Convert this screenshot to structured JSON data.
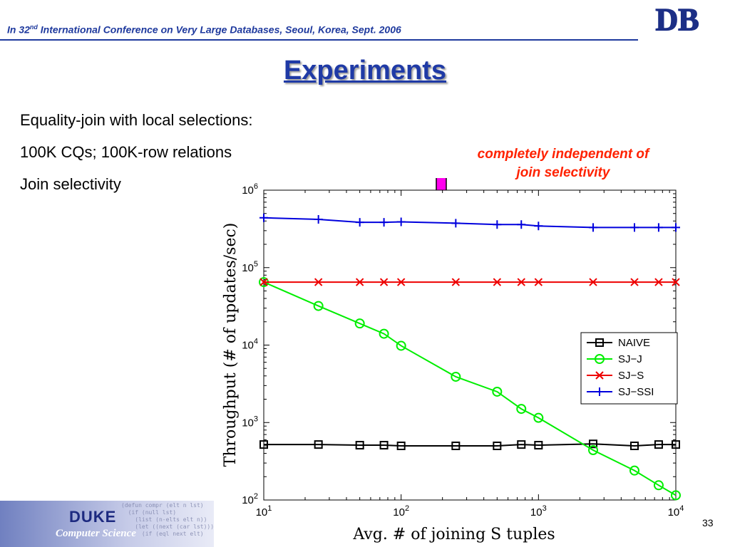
{
  "header": {
    "prefix": "In 32",
    "sup": "nd",
    "rest": " International Conference on Very Large Databases, Seoul, Korea, Sept. 2006",
    "logo_text": "DB"
  },
  "title": "Experiments",
  "bullets": [
    "Equality-join with local selections:",
    "100K CQs; 100K-row relations",
    "Join selectivity"
  ],
  "annotation": {
    "line1": "completely independent of",
    "line2": "join selectivity",
    "color": "#ff2200",
    "arrow_color": "#ff00ee"
  },
  "footer": {
    "duke": "DUKE",
    "cs": "Computer Science",
    "code_lines": [
      "(defun compr (elt n lst)",
      "  (if (null lst)",
      "    (list (n-elts elt n))",
      "    (let ((next (car lst)))",
      "      (if (eql next elt)"
    ]
  },
  "page_number": "33",
  "chart_data": {
    "type": "line",
    "xscale": "log",
    "yscale": "log",
    "xlim": [
      10,
      10000
    ],
    "ylim": [
      100,
      1000000
    ],
    "xlabel": "Avg. # of joining S tuples",
    "ylabel": "Throughput (# of updates/sec)",
    "xticks": [
      10,
      100,
      1000,
      10000
    ],
    "yticks": [
      100,
      1000,
      10000,
      100000,
      1000000
    ],
    "tick_base": "10",
    "xtick_exponents": [
      "1",
      "2",
      "3",
      "4"
    ],
    "ytick_exponents": [
      "2",
      "3",
      "4",
      "5",
      "6"
    ],
    "legend_position": "right",
    "grid": false,
    "x": [
      10,
      25,
      50,
      75,
      100,
      250,
      500,
      750,
      1000,
      2500,
      5000,
      7500,
      10000
    ],
    "series": [
      {
        "name": "NAIVE",
        "color": "#000000",
        "marker": "square",
        "values": [
          520,
          520,
          510,
          510,
          500,
          500,
          500,
          520,
          510,
          530,
          500,
          520,
          520
        ]
      },
      {
        "name": "SJ−J",
        "color": "#00ee00",
        "marker": "circle",
        "values": [
          65000,
          32000,
          19000,
          14000,
          9800,
          3900,
          2500,
          1500,
          1150,
          440,
          240,
          155,
          115
        ]
      },
      {
        "name": "SJ−S",
        "color": "#ee0000",
        "marker": "x",
        "values": [
          65000,
          65000,
          65000,
          65000,
          65000,
          65000,
          65000,
          65000,
          65000,
          65000,
          65000,
          65000,
          65000
        ]
      },
      {
        "name": "SJ−SSI",
        "color": "#0000dd",
        "marker": "plus",
        "values": [
          440000,
          420000,
          385000,
          385000,
          390000,
          375000,
          360000,
          360000,
          345000,
          330000,
          330000,
          330000,
          330000
        ]
      }
    ]
  }
}
